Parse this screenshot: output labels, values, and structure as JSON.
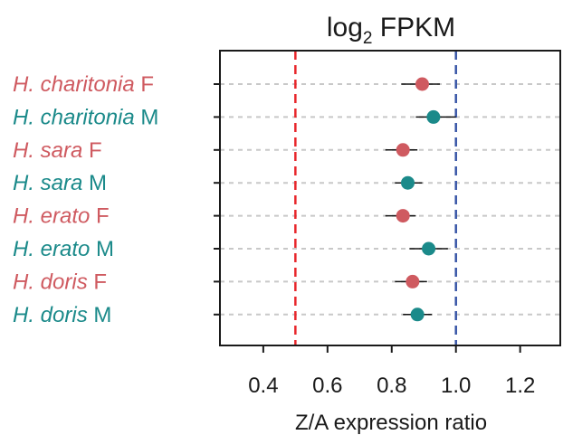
{
  "chart_data": {
    "type": "scatter",
    "title": "log",
    "title_subscript": "2",
    "title_rest": " FPKM",
    "xlabel": "Z/A expression ratio",
    "xlim": [
      0.265,
      1.325
    ],
    "x_ticks": [
      0.4,
      0.6,
      0.8,
      1.0,
      1.2
    ],
    "x_tick_labels": [
      "0.4",
      "0.6",
      "0.8",
      "1.0",
      "1.2"
    ],
    "grid": "horizontal-dashed",
    "reference_lines": [
      {
        "x": 0.5,
        "color": "#e8262b"
      },
      {
        "x": 1.0,
        "color": "#3a57a7"
      }
    ],
    "colors": {
      "F": "#cf5a60",
      "M": "#1b8a8a"
    },
    "rows": [
      {
        "species": "H. charitonia",
        "sex": "F",
        "value": 0.895,
        "ci": [
          0.83,
          0.95
        ]
      },
      {
        "species": "H. charitonia",
        "sex": "M",
        "value": 0.93,
        "ci": [
          0.875,
          1.0
        ]
      },
      {
        "species": "H. sara",
        "sex": "F",
        "value": 0.835,
        "ci": [
          0.78,
          0.88
        ]
      },
      {
        "species": "H. sara",
        "sex": "M",
        "value": 0.85,
        "ci": [
          0.81,
          0.895
        ]
      },
      {
        "species": "H. erato",
        "sex": "F",
        "value": 0.835,
        "ci": [
          0.78,
          0.875
        ]
      },
      {
        "species": "H. erato",
        "sex": "M",
        "value": 0.915,
        "ci": [
          0.855,
          0.975
        ]
      },
      {
        "species": "H. doris",
        "sex": "F",
        "value": 0.865,
        "ci": [
          0.81,
          0.91
        ]
      },
      {
        "species": "H. doris",
        "sex": "M",
        "value": 0.88,
        "ci": [
          0.835,
          0.925
        ]
      }
    ]
  }
}
